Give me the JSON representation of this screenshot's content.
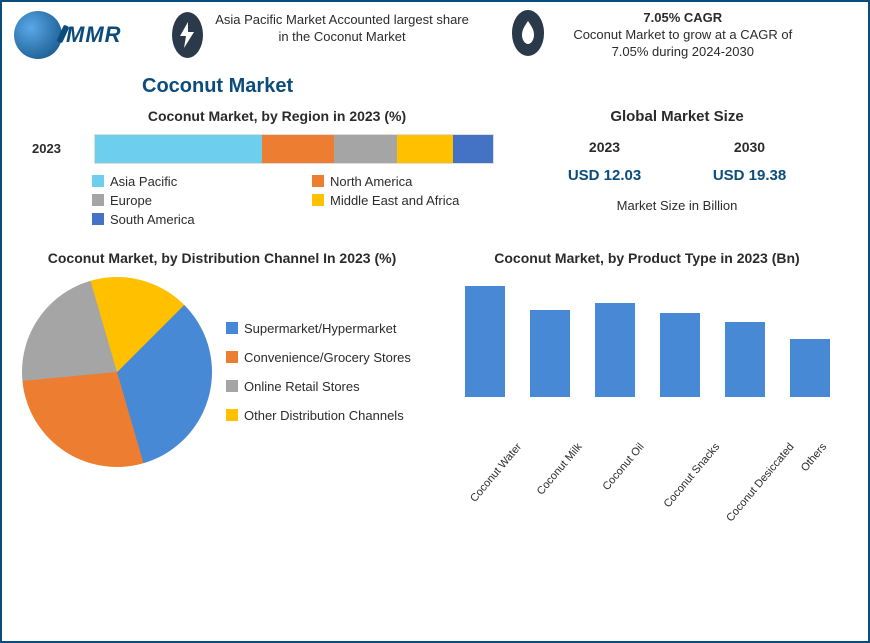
{
  "logo_text": "MMR",
  "header": {
    "block1": "Asia Pacific Market Accounted largest share in the Coconut Market",
    "block2_strong": "7.05% CAGR",
    "block2_text": "Coconut Market to grow at a CAGR of 7.05% during 2024-2030"
  },
  "main_title": "Coconut Market",
  "region_chart": {
    "title": "Coconut Market, by Region in 2023 (%)",
    "year": "2023",
    "segments": [
      {
        "label": "Asia Pacific",
        "pct": 42,
        "color": "#6eceee"
      },
      {
        "label": "North America",
        "pct": 18,
        "color": "#ed7d31"
      },
      {
        "label": "Europe",
        "pct": 16,
        "color": "#a5a5a5"
      },
      {
        "label": "Middle East and Africa",
        "pct": 14,
        "color": "#ffc000"
      },
      {
        "label": "South America",
        "pct": 10,
        "color": "#4472c4"
      }
    ]
  },
  "market_size": {
    "title": "Global Market Size",
    "year1": "2023",
    "year2": "2030",
    "val1": "USD 12.03",
    "val2": "USD 19.38",
    "sub": "Market Size in Billion"
  },
  "pie_chart": {
    "title": "Coconut Market, by Distribution Channel In 2023 (%)",
    "slices": [
      {
        "label": "Supermarket/Hypermarket",
        "pct": 33,
        "color": "#4889d6"
      },
      {
        "label": "Convenience/Grocery Stores",
        "pct": 28,
        "color": "#ed7d31"
      },
      {
        "label": "Online Retail Stores",
        "pct": 22,
        "color": "#a5a5a5"
      },
      {
        "label": "Other Distribution Channels",
        "pct": 17,
        "color": "#ffc000"
      }
    ]
  },
  "bar_chart": {
    "title": "Coconut Market, by Product Type in 2023 (Bn)",
    "bar_color": "#4889d6",
    "ymax": 100,
    "bars": [
      {
        "label": "Coconut Water",
        "value": 92
      },
      {
        "label": "Coconut Milk",
        "value": 72
      },
      {
        "label": "Coconut Oil",
        "value": 78
      },
      {
        "label": "Coconut Snacks",
        "value": 70
      },
      {
        "label": "Coconut Desiccated",
        "value": 62
      },
      {
        "label": "Others",
        "value": 48
      }
    ]
  }
}
